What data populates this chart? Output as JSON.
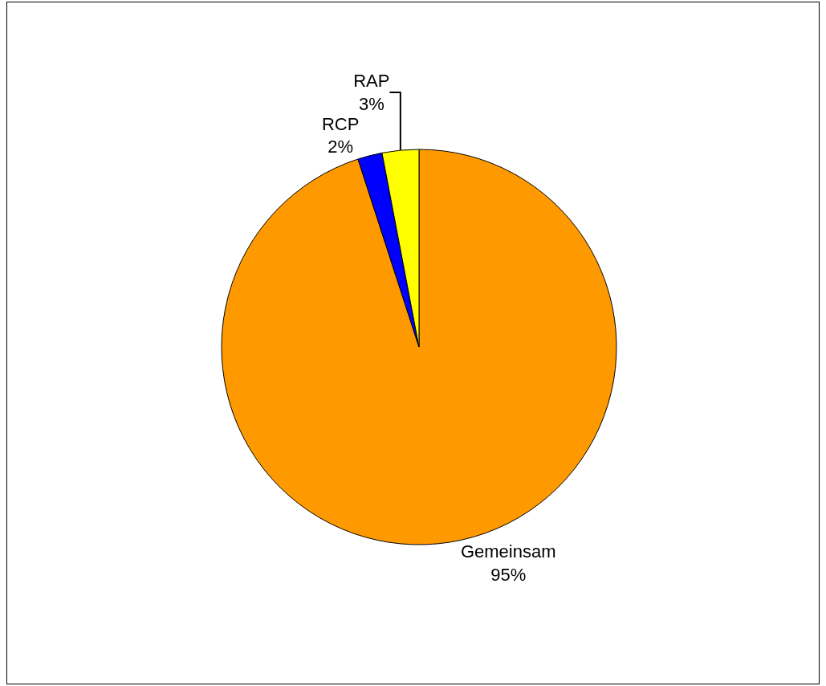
{
  "chart_data": {
    "type": "pie",
    "categories": [
      "Gemeinsam",
      "RCP",
      "RAP"
    ],
    "values": [
      95,
      2,
      3
    ],
    "value_labels": [
      "95%",
      "2%",
      "3%"
    ],
    "colors": [
      "#ff9900",
      "#0000ff",
      "#ffff00"
    ],
    "legend": false
  }
}
